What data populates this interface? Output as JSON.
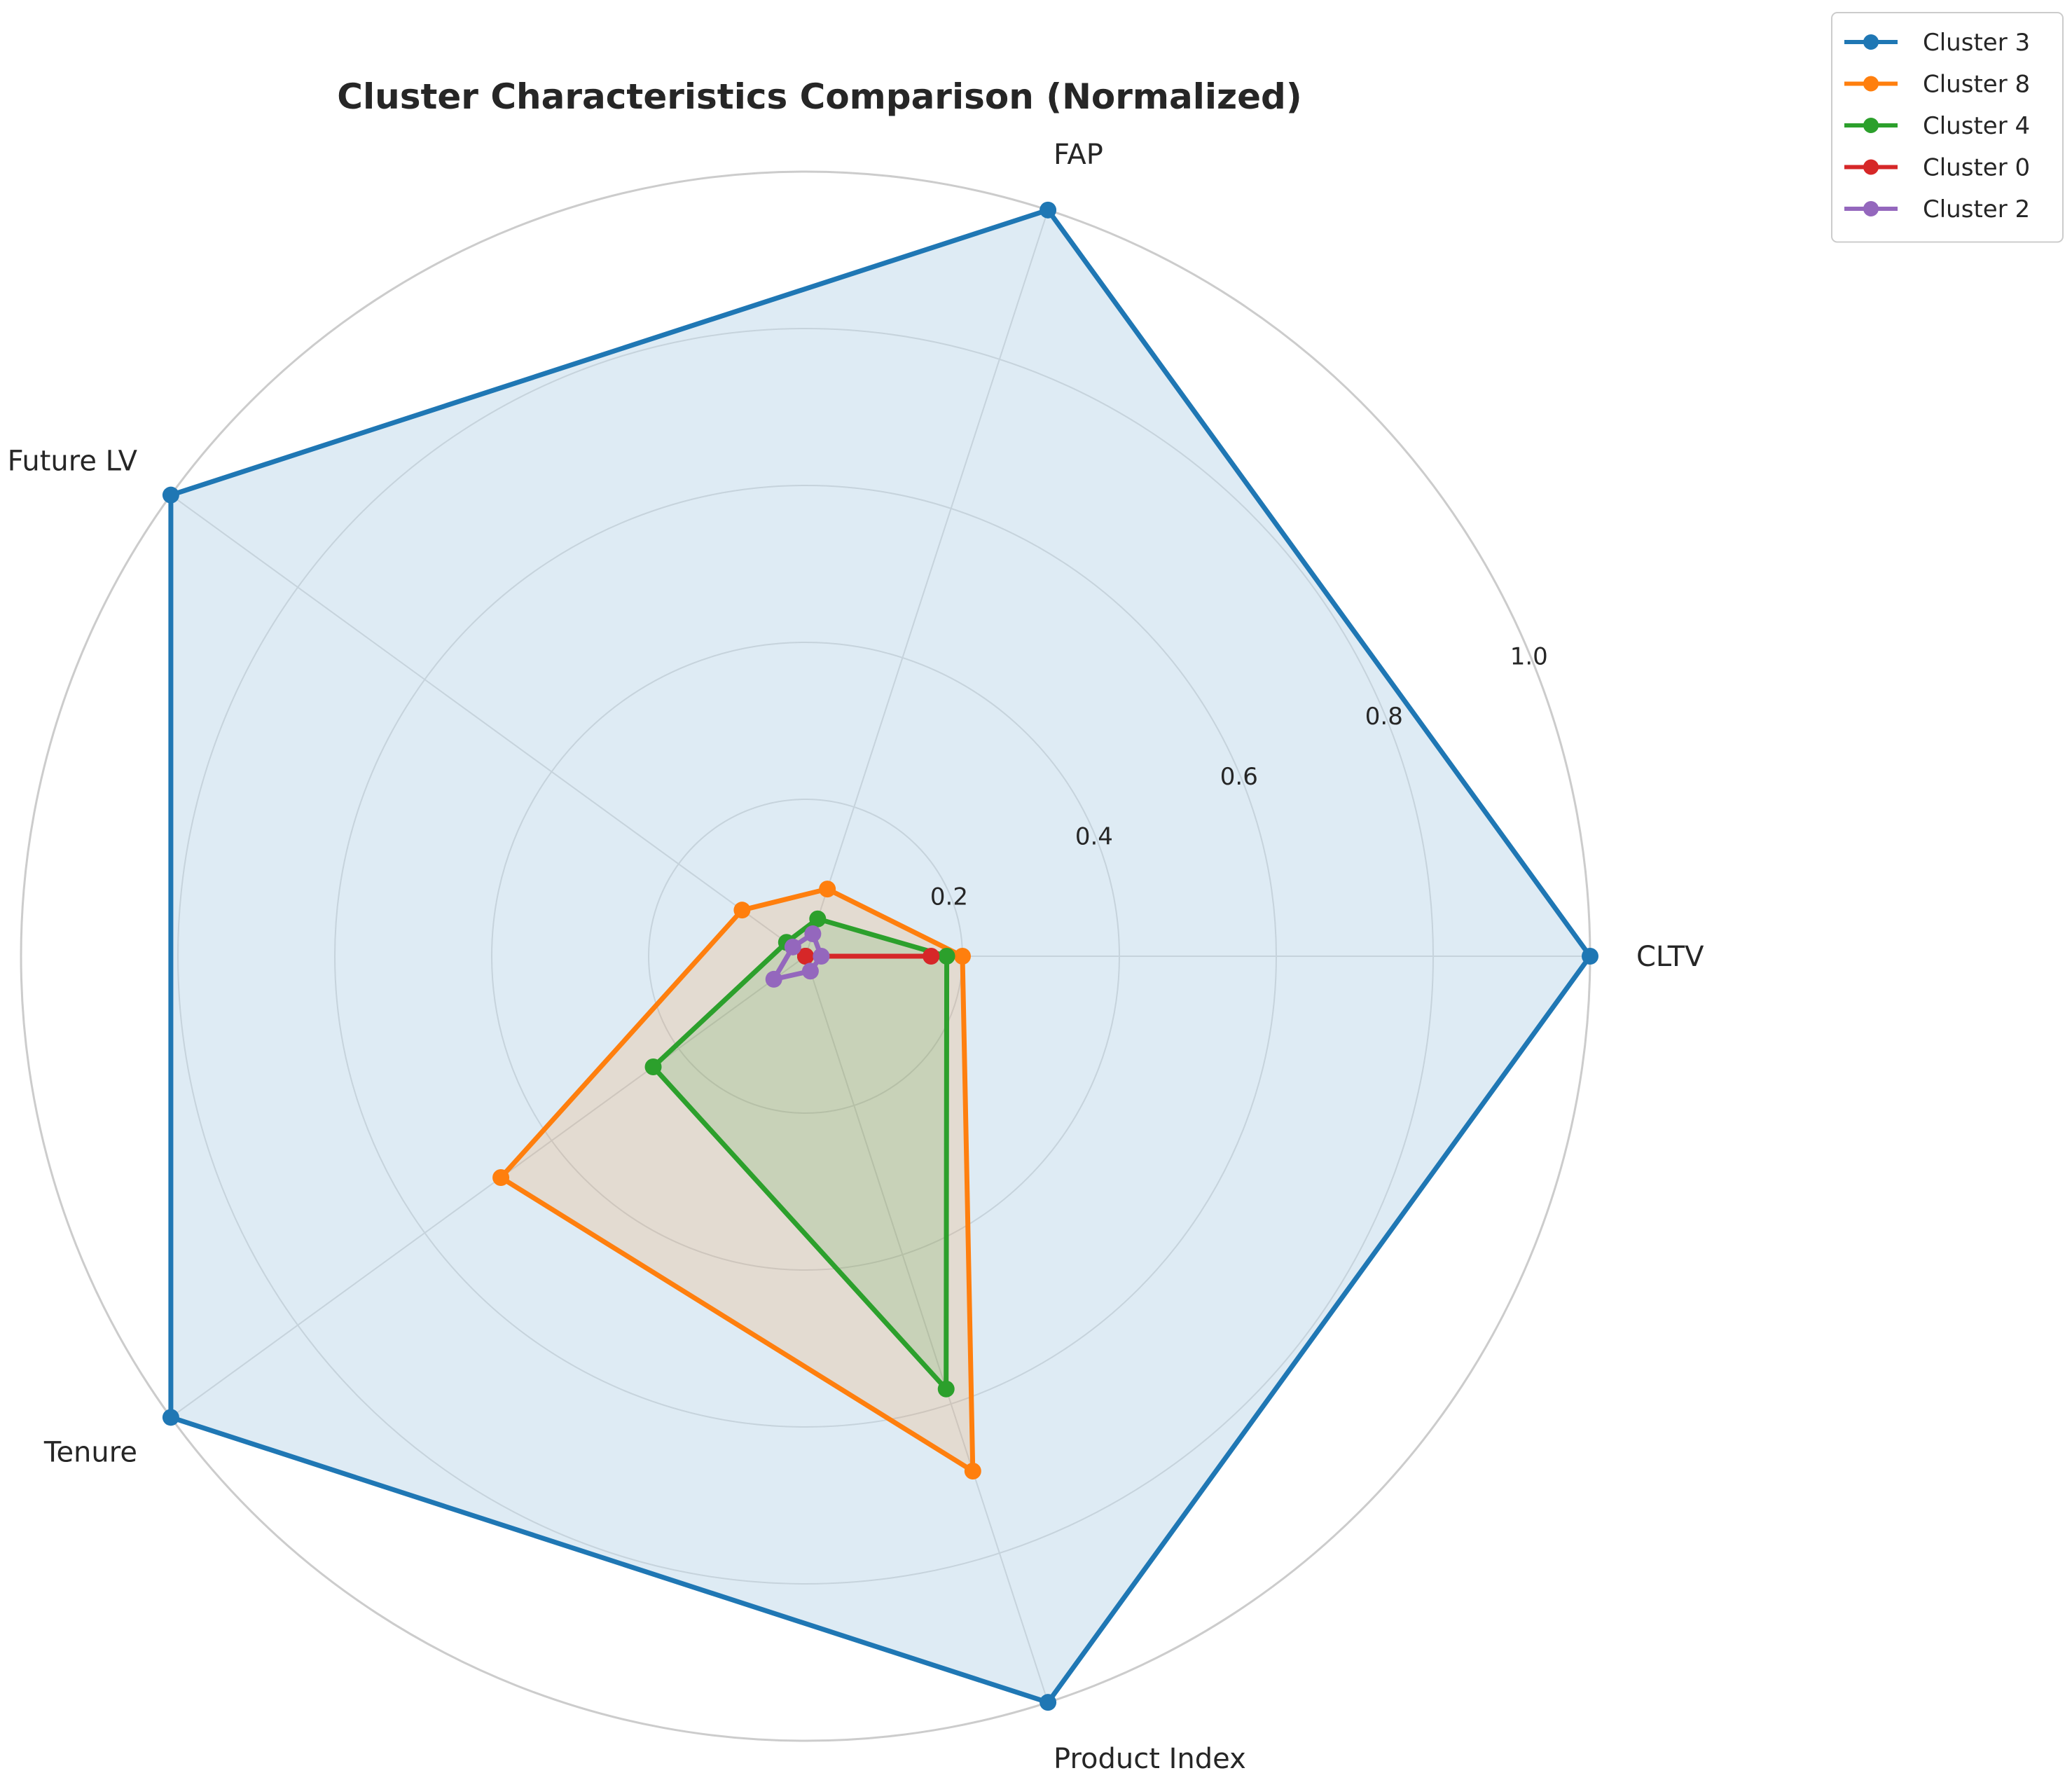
{
  "chart_data": {
    "type": "radar",
    "title": "Cluster Characteristics Comparison (Normalized)",
    "categories": [
      "CLTV",
      "FAP",
      "Future LV",
      "Tenure",
      "Product Index"
    ],
    "rlim": [
      0,
      1.0
    ],
    "radial_ticks": [
      {
        "value": 0.2,
        "label": "0.2"
      },
      {
        "value": 0.4,
        "label": "0.4"
      },
      {
        "value": 0.6,
        "label": "0.6"
      },
      {
        "value": 0.8,
        "label": "0.8"
      },
      {
        "value": 1.0,
        "label": "1.0"
      }
    ],
    "grid": true,
    "legend": "upper-right-outside",
    "series": [
      {
        "name": "Cluster 3",
        "color": "#1f77b4",
        "filled": true,
        "values": [
          1.0,
          1.0,
          1.0,
          1.0,
          1.0
        ]
      },
      {
        "name": "Cluster 8",
        "color": "#ff7f0e",
        "filled": true,
        "values": [
          0.2,
          0.09,
          0.1,
          0.48,
          0.69
        ]
      },
      {
        "name": "Cluster 4",
        "color": "#2ca02c",
        "filled": true,
        "values": [
          0.18,
          0.05,
          0.03,
          0.24,
          0.58
        ]
      },
      {
        "name": "Cluster 0",
        "color": "#d62728",
        "filled": false,
        "values": [
          0.16,
          0.0,
          0.0,
          0.0,
          0.0
        ]
      },
      {
        "name": "Cluster 2",
        "color": "#9467bd",
        "filled": false,
        "values": [
          0.02,
          0.03,
          0.02,
          0.05,
          0.02
        ]
      }
    ]
  }
}
